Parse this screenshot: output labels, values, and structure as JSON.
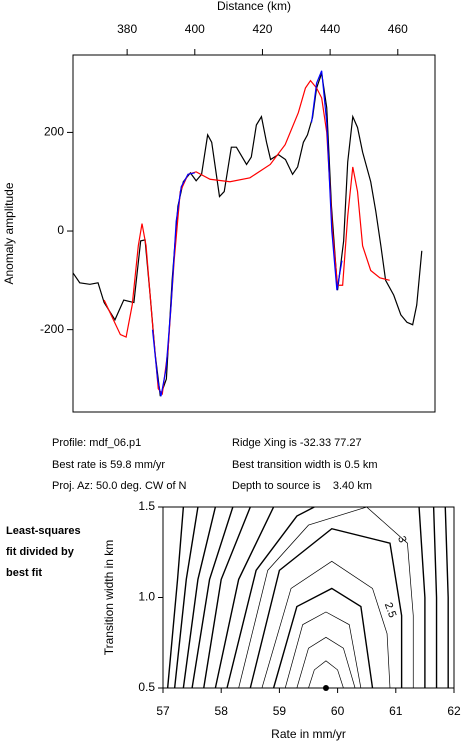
{
  "chart_data": [
    {
      "type": "line",
      "xlabel": "Distance (km)",
      "ylabel": "Anomaly amplitude",
      "xlim": [
        364,
        471
      ],
      "xticks": [
        380,
        400,
        420,
        440,
        460
      ],
      "ylim": [
        -367,
        357
      ],
      "yticks": [
        -200,
        0,
        200
      ],
      "series": [
        {
          "color": "#000000",
          "x": [
            364,
            366,
            369,
            371.4,
            373.2,
            376.4,
            379,
            382,
            384,
            385.3,
            386.8,
            388.3,
            389.8,
            391.6,
            393.3,
            395,
            396.6,
            398.7,
            400.4,
            402,
            403.8,
            405,
            407.3,
            408.7,
            410.8,
            412.3,
            415.3,
            416.7,
            418.2,
            419.7,
            421.2,
            422.4,
            424.7,
            426.8,
            428.9,
            430.4,
            432.1,
            433.3,
            434.8,
            436,
            437.5,
            439,
            440.4,
            442.2,
            444,
            445.2,
            446.7,
            448.1,
            449.6,
            452,
            453.5,
            455,
            456.4,
            458.8,
            460.9,
            462.7,
            464.4,
            465.6,
            467.1
          ],
          "values": [
            -85,
            -105,
            -108,
            -105,
            -145,
            -180,
            -140,
            -145,
            -20,
            -18,
            -130,
            -250,
            -335,
            -300,
            -100,
            50,
            100,
            118,
            102,
            115,
            195,
            180,
            70,
            80,
            170,
            170,
            135,
            150,
            215,
            232,
            180,
            145,
            155,
            145,
            115,
            130,
            180,
            195,
            230,
            290,
            320,
            250,
            50,
            -120,
            -20,
            140,
            232,
            210,
            160,
            100,
            40,
            -30,
            -100,
            -130,
            -170,
            -185,
            -190,
            -150,
            -40
          ]
        },
        {
          "color": "#ff0000",
          "x": [
            373.2,
            375.6,
            378,
            379.7,
            381.5,
            383.3,
            384.4,
            385.6,
            387.4,
            389.2,
            390.4,
            392.1,
            393.9,
            395.7,
            398,
            400.4,
            404.5,
            410.4,
            416.3,
            422.3,
            426.7,
            430.6,
            432.7,
            434.2,
            436,
            437.5,
            439,
            440.7,
            442.2,
            443.7,
            445.2,
            446.7,
            448.1,
            449.6,
            452,
            454.7,
            457.6
          ],
          "values": [
            -140,
            -175,
            -210,
            -215,
            -150,
            -30,
            15,
            -30,
            -180,
            -320,
            -330,
            -240,
            -60,
            80,
            115,
            120,
            105,
            100,
            108,
            135,
            175,
            240,
            290,
            305,
            290,
            270,
            200,
            0,
            -110,
            -110,
            30,
            130,
            80,
            -30,
            -80,
            -95,
            -100
          ]
        },
        {
          "color": "#0000ff",
          "x": [
            387.5,
            389,
            390,
            391.5,
            393,
            394.5,
            396,
            398,
            400
          ],
          "values": [
            -200,
            -300,
            -335,
            -280,
            -150,
            20,
            90,
            115,
            118
          ]
        },
        {
          "color": "#0000ff",
          "x": [
            434.5,
            436,
            437.5,
            439,
            440.5,
            442,
            443.5
          ],
          "values": [
            220,
            300,
            325,
            220,
            0,
            -120,
            -60
          ]
        }
      ],
      "annotations": [
        "Profile: mdf_06.p1",
        "Best rate is 59.8 mm/yr",
        "Proj. Az: 50.0 deg. CW of N",
        "Ridge Xing is -32.33 77.27",
        "Best transition width is 0.5 km",
        "Depth to source is    3.40 km"
      ]
    },
    {
      "type": "contour",
      "xlabel": "Rate in mm/yr",
      "ylabel": "Transition width in km",
      "xlim": [
        57,
        62
      ],
      "xticks": [
        57,
        58,
        59,
        60,
        61,
        62
      ],
      "ylim": [
        0.5,
        1.5
      ],
      "yticks": [
        0.5,
        {
          "value": 1,
          "label": "1.0"
        },
        1.5
      ],
      "annotation": [
        "Least-squares",
        "fit divided by",
        "best fit"
      ],
      "best_fit": {
        "x": 59.8,
        "y": 0.5
      },
      "contours": [
        {
          "level": 1.1,
          "x": [
            59.5,
            59.6,
            59.8,
            60.0,
            60.1
          ],
          "y": [
            0.5,
            0.6,
            0.65,
            0.6,
            0.5
          ]
        },
        {
          "level": 1.3,
          "x": [
            59.3,
            59.5,
            59.8,
            60.1,
            60.3
          ],
          "y": [
            0.5,
            0.72,
            0.78,
            0.72,
            0.5
          ]
        },
        {
          "level": 1.6,
          "x": [
            59.1,
            59.4,
            59.8,
            60.2,
            60.4
          ],
          "y": [
            0.5,
            0.85,
            0.92,
            0.85,
            0.5
          ]
        },
        {
          "level": 2,
          "x": [
            58.9,
            59.3,
            59.9,
            60.4,
            60.6
          ],
          "y": [
            0.5,
            0.95,
            1.05,
            0.95,
            0.5
          ]
        },
        {
          "level": 2.5,
          "label": "2.5",
          "label_x": 60.9,
          "label_y": 0.93,
          "x": [
            58.7,
            59.2,
            59.9,
            60.6,
            60.85,
            60.9
          ],
          "y": [
            0.5,
            1.05,
            1.2,
            1.05,
            0.8,
            0.5
          ]
        },
        {
          "level": 3,
          "label": "3",
          "label_x": 61.1,
          "label_y": 1.32,
          "x": [
            58.5,
            59.0,
            59.9,
            60.9,
            61.1,
            61.1
          ],
          "y": [
            0.5,
            1.15,
            1.38,
            1.3,
            0.9,
            0.5
          ]
        },
        {
          "level": 3.5,
          "x": [
            58.3,
            58.8,
            59.5,
            60.5,
            61.2,
            61.3,
            61.3
          ],
          "y": [
            0.5,
            1.15,
            1.4,
            1.5,
            1.3,
            0.9,
            0.5
          ]
        },
        {
          "level": 4,
          "x": [
            58.1,
            58.6,
            59.3,
            59.6
          ],
          "y": [
            0.5,
            1.15,
            1.45,
            1.5
          ]
        },
        {
          "level": 4,
          "x": [
            61.5,
            61.5,
            61.4
          ],
          "y": [
            0.5,
            1.0,
            1.5
          ]
        },
        {
          "level": 5,
          "x": [
            57.9,
            58.3,
            58.9
          ],
          "y": [
            0.5,
            1.1,
            1.5
          ]
        },
        {
          "level": 5,
          "x": [
            61.7,
            61.7,
            61.65
          ],
          "y": [
            0.5,
            1.0,
            1.5
          ]
        },
        {
          "level": 6,
          "x": [
            57.7,
            58.0,
            58.5
          ],
          "y": [
            0.5,
            1.1,
            1.5
          ]
        },
        {
          "level": 6,
          "x": [
            61.9,
            61.9,
            61.85
          ],
          "y": [
            0.5,
            1.0,
            1.5
          ]
        },
        {
          "level": 7,
          "x": [
            57.5,
            57.8,
            58.2
          ],
          "y": [
            0.5,
            1.1,
            1.5
          ]
        },
        {
          "level": 8,
          "x": [
            57.35,
            57.6,
            57.9
          ],
          "y": [
            0.5,
            1.1,
            1.5
          ]
        },
        {
          "level": 10,
          "x": [
            57.2,
            57.4,
            57.6
          ],
          "y": [
            0.5,
            1.1,
            1.5
          ]
        },
        {
          "level": 12,
          "x": [
            57.08,
            57.25,
            57.35
          ],
          "y": [
            0.5,
            1.1,
            1.5
          ]
        }
      ]
    }
  ]
}
